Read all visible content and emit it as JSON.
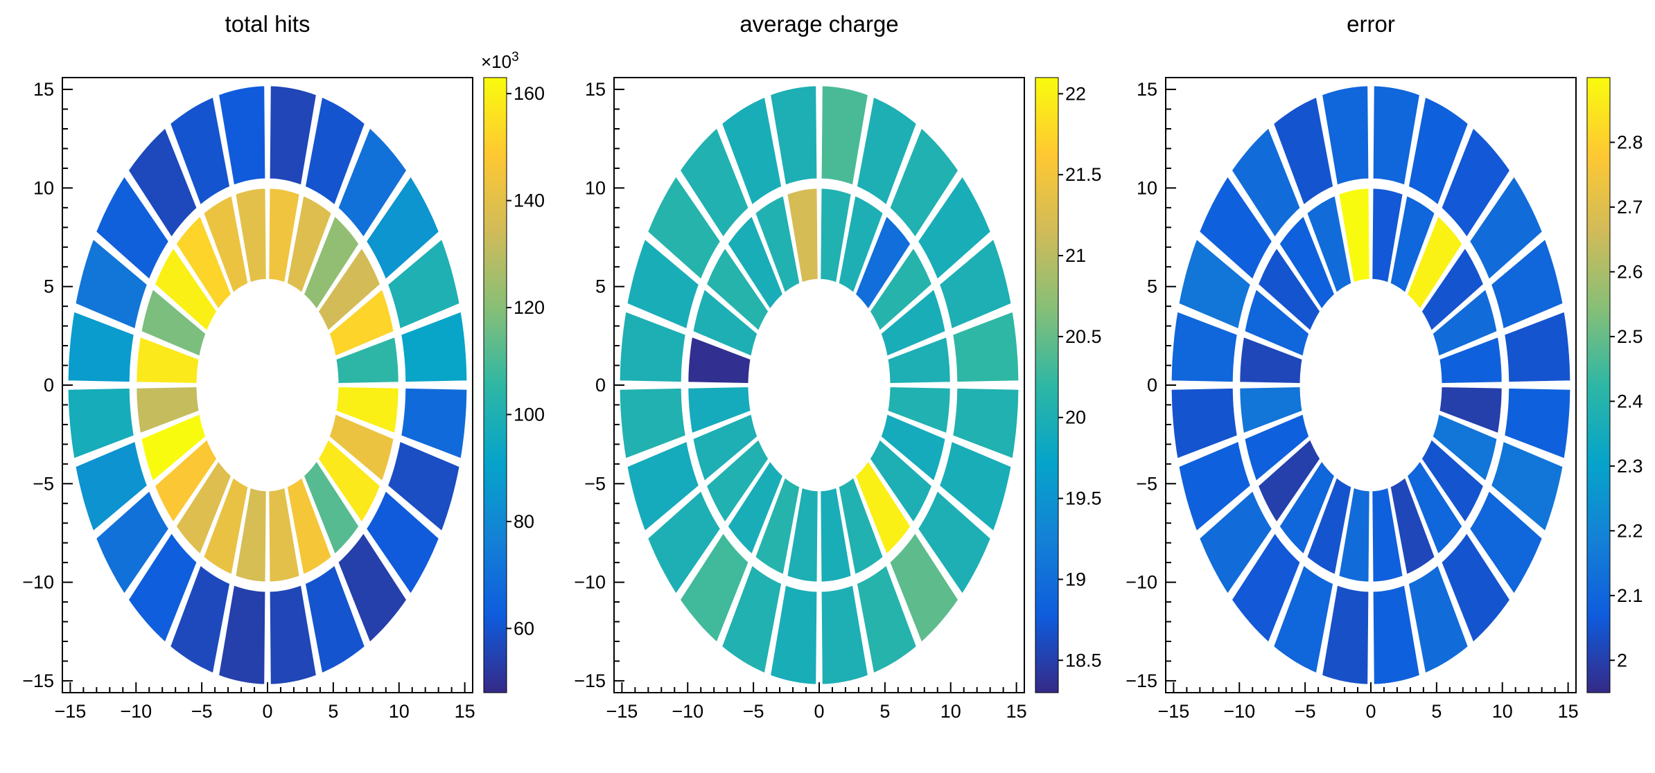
{
  "figure": {
    "background_color": "#ffffff",
    "frame_color": "#000000"
  },
  "palette": [
    "#352a87",
    "#0f5cdd",
    "#1481d6",
    "#06a4ca",
    "#2eb7a4",
    "#87bf77",
    "#d1bb59",
    "#fec832",
    "#f9fb0e"
  ],
  "chart_data": [
    {
      "type": "heatmap",
      "subtype": "polar-annular-segments",
      "title": "total hits",
      "xlim": [
        -15.6,
        15.6
      ],
      "ylim": [
        -15.6,
        15.6
      ],
      "grid": false,
      "x_ticks": {
        "values": [
          -15,
          -10,
          -5,
          0,
          5,
          10,
          15
        ],
        "labels": [
          "−15",
          "−10",
          "−5",
          "0",
          "5",
          "10",
          "15"
        ],
        "minor_step": 1
      },
      "y_ticks": {
        "values": [
          -15,
          -10,
          -5,
          0,
          5,
          10,
          15
        ],
        "labels": [
          "−15",
          "−10",
          "−5",
          "0",
          "5",
          "10",
          "15"
        ],
        "minor_step": 1
      },
      "colorbar": {
        "position": "right",
        "min": 48,
        "max": 163,
        "tick_values": [
          60,
          80,
          100,
          120,
          140,
          160
        ],
        "tick_labels": [
          "60",
          "80",
          "100",
          "120",
          "140",
          "160"
        ],
        "exponent_base": "×10",
        "exponent_power": "3"
      },
      "rings": [
        {
          "name": "inner",
          "r_inner": 5.35,
          "r_outer": 10.0,
          "segments": 24,
          "start_angle_deg": 90,
          "values": [
            140,
            143,
            152,
            160,
            118,
            158,
            132,
            165,
            148,
            138,
            142,
            136,
            140,
            146,
            112,
            158,
            143,
            160,
            105,
            152,
            135,
            122,
            138,
            144
          ]
        },
        {
          "name": "outer",
          "r_inner": 10.45,
          "r_outer": 15.2,
          "segments": 24,
          "start_angle_deg": 90,
          "values": [
            62,
            60,
            57,
            64,
            72,
            88,
            97,
            84,
            70,
            63,
            57,
            54,
            56,
            60,
            54,
            62,
            58,
            68,
            92,
            100,
            85,
            70,
            60,
            56
          ]
        }
      ]
    },
    {
      "type": "heatmap",
      "subtype": "polar-annular-segments",
      "title": "average charge",
      "xlim": [
        -15.6,
        15.6
      ],
      "ylim": [
        -15.6,
        15.6
      ],
      "grid": false,
      "x_ticks": {
        "values": [
          -15,
          -10,
          -5,
          0,
          5,
          10,
          15
        ],
        "labels": [
          "−15",
          "−10",
          "−5",
          "0",
          "5",
          "10",
          "15"
        ],
        "minor_step": 1
      },
      "y_ticks": {
        "values": [
          -15,
          -10,
          -5,
          0,
          5,
          10,
          15
        ],
        "labels": [
          "−15",
          "−10",
          "−5",
          "0",
          "5",
          "10",
          "15"
        ],
        "minor_step": 1
      },
      "colorbar": {
        "position": "right",
        "min": 18.3,
        "max": 22.1,
        "tick_values": [
          18.5,
          19,
          19.5,
          20,
          20.5,
          21,
          21.5,
          22
        ],
        "tick_labels": [
          "18.5",
          "19",
          "19.5",
          "20",
          "20.5",
          "21",
          "21.5",
          "22"
        ],
        "exponent_base": "",
        "exponent_power": ""
      },
      "rings": [
        {
          "name": "inner",
          "r_inner": 5.35,
          "r_outer": 10.0,
          "segments": 24,
          "start_angle_deg": 90,
          "values": [
            21.2,
            20.05,
            19.95,
            20.1,
            20.0,
            18.35,
            19.9,
            20.0,
            20.05,
            19.95,
            20.1,
            20.0,
            19.95,
            20.05,
            22.0,
            20.0,
            19.9,
            20.05,
            20.0,
            19.95,
            20.1,
            19.0,
            20.0,
            20.05
          ]
        },
        {
          "name": "outer",
          "r_inner": 10.45,
          "r_outer": 15.2,
          "segments": 24,
          "start_angle_deg": 90,
          "values": [
            20.0,
            19.95,
            20.05,
            20.1,
            19.95,
            20.0,
            20.05,
            19.9,
            20.0,
            20.3,
            20.05,
            19.95,
            20.0,
            20.1,
            20.45,
            20.0,
            19.95,
            20.05,
            20.2,
            20.0,
            19.95,
            20.05,
            20.0,
            20.35
          ]
        }
      ]
    },
    {
      "type": "heatmap",
      "subtype": "polar-annular-segments",
      "title": "error",
      "xlim": [
        -15.6,
        15.6
      ],
      "ylim": [
        -15.6,
        15.6
      ],
      "grid": false,
      "x_ticks": {
        "values": [
          -15,
          -10,
          -5,
          0,
          5,
          10,
          15
        ],
        "labels": [
          "−15",
          "−10",
          "−5",
          "0",
          "5",
          "10",
          "15"
        ],
        "minor_step": 1
      },
      "y_ticks": {
        "values": [
          -15,
          -10,
          -5,
          0,
          5,
          10,
          15
        ],
        "labels": [
          "−15",
          "−10",
          "−5",
          "0",
          "5",
          "10",
          "15"
        ],
        "minor_step": 1
      },
      "colorbar": {
        "position": "right",
        "min": 1.95,
        "max": 2.9,
        "tick_values": [
          2,
          2.1,
          2.2,
          2.3,
          2.4,
          2.5,
          2.6,
          2.7,
          2.8
        ],
        "tick_labels": [
          "2",
          "2.1",
          "2.2",
          "2.3",
          "2.4",
          "2.5",
          "2.6",
          "2.7",
          "2.8"
        ],
        "exponent_base": "",
        "exponent_power": ""
      },
      "rings": [
        {
          "name": "inner",
          "r_inner": 5.35,
          "r_outer": 10.0,
          "segments": 24,
          "start_angle_deg": 90,
          "values": [
            2.9,
            2.12,
            2.08,
            2.05,
            2.1,
            2.02,
            2.15,
            2.08,
            2.0,
            2.1,
            2.05,
            2.12,
            2.08,
            2.02,
            2.1,
            2.05,
            2.15,
            2.0,
            2.08,
            2.12,
            2.05,
            2.88,
            2.1,
            2.06
          ]
        },
        {
          "name": "outer",
          "r_inner": 10.45,
          "r_outer": 15.2,
          "segments": 24,
          "start_angle_deg": 90,
          "values": [
            2.1,
            2.05,
            2.12,
            2.08,
            2.15,
            2.1,
            2.05,
            2.08,
            2.12,
            2.06,
            2.1,
            2.04,
            2.08,
            2.12,
            2.05,
            2.1,
            2.15,
            2.08,
            2.05,
            2.1,
            2.12,
            2.06,
            2.08,
            2.1
          ]
        }
      ]
    }
  ]
}
